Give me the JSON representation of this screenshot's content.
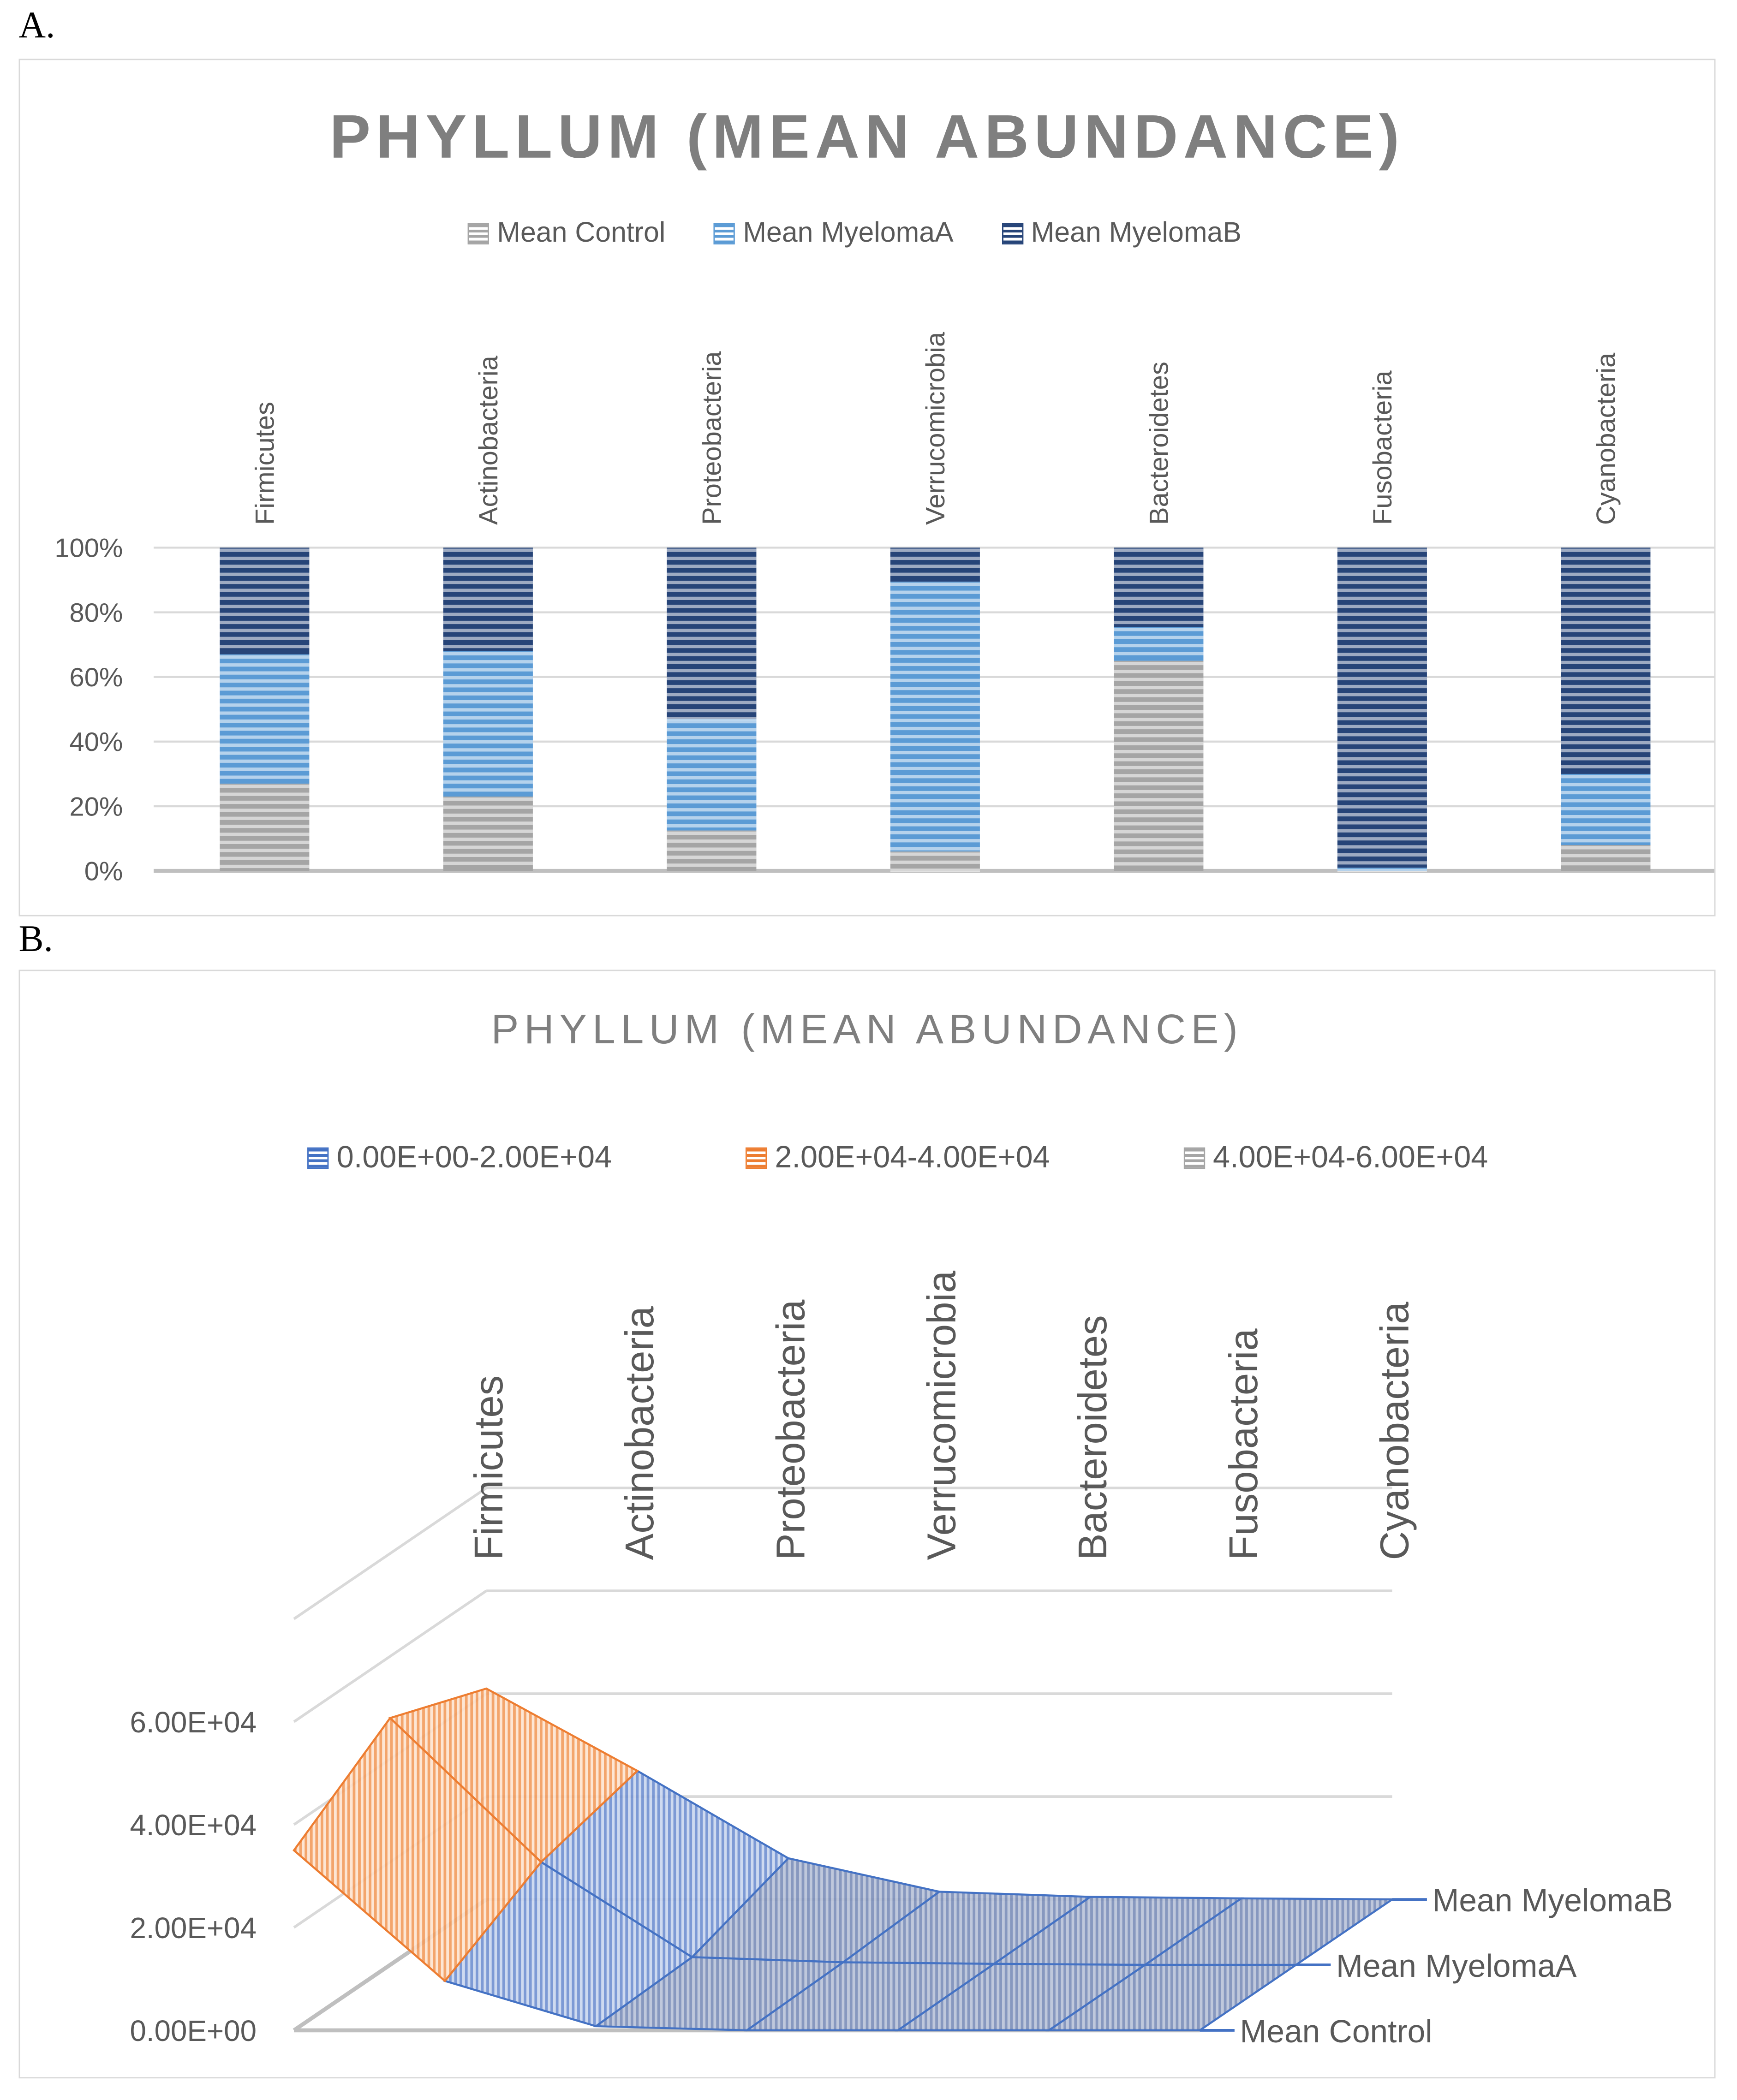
{
  "panelA": {
    "label": "A.",
    "title": "PHYLLUM (MEAN ABUNDANCE)"
  },
  "panelB": {
    "label": "B.",
    "title": "PHYLLUM (MEAN ABUNDANCE)"
  },
  "chart_data": [
    {
      "type": "bar",
      "stacked": "percent",
      "title": "PHYLLUM (MEAN ABUNDANCE)",
      "categories": [
        "Firmicutes",
        "Actinobacteria",
        "Proteobacteria",
        "Verrucomicrobia",
        "Bacteroidetes",
        "Fusobacteria",
        "Cyanobacteria"
      ],
      "series": [
        {
          "name": "Mean Control",
          "color": "#a5a5a5",
          "values": [
            27,
            23,
            12.5,
            6,
            65,
            0,
            8
          ]
        },
        {
          "name": "Mean MyelomaA",
          "color": "#5b9bd5",
          "values": [
            40,
            45,
            34.5,
            83.5,
            10.5,
            1,
            22
          ]
        },
        {
          "name": "Mean MyelomaB",
          "color": "#264478",
          "values": [
            33,
            32,
            53,
            10.5,
            24.5,
            99,
            70
          ]
        }
      ],
      "yticks": [
        "0%",
        "20%",
        "40%",
        "60%",
        "80%",
        "100%"
      ],
      "ylim": [
        0,
        100
      ],
      "grid": true,
      "legend": "top"
    },
    {
      "type": "surface",
      "title": "PHYLLUM (MEAN ABUNDANCE)",
      "categories": [
        "Firmicutes",
        "Actinobacteria",
        "Proteobacteria",
        "Verrucomicrobia",
        "Bacteroidetes",
        "Fusobacteria",
        "Cyanobacteria"
      ],
      "series": [
        {
          "name": "Mean Control",
          "values": [
            35000,
            9600,
            800,
            0,
            0,
            0,
            0
          ]
        },
        {
          "name": "Mean MyelomaA",
          "values": [
            48000,
            20000,
            1500,
            500,
            200,
            0,
            0
          ]
        },
        {
          "name": "Mean MyelomaB",
          "values": [
            41000,
            25000,
            8000,
            1500,
            500,
            200,
            0
          ]
        }
      ],
      "bands": [
        {
          "name": "0.00E+00-2.00E+04",
          "color": "#4472c4"
        },
        {
          "name": "2.00E+04-4.00E+04",
          "color": "#ed7d31"
        },
        {
          "name": "4.00E+04-6.00E+04",
          "color": "#a5a5a5"
        }
      ],
      "zticks": [
        "0.00E+00",
        "2.00E+04",
        "4.00E+04",
        "6.00E+04"
      ],
      "zlim": [
        0,
        80000
      ],
      "legend": "top"
    }
  ]
}
